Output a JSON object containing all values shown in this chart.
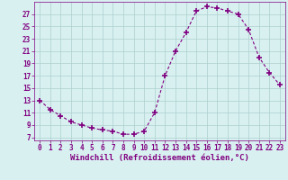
{
  "x": [
    0,
    1,
    2,
    3,
    4,
    5,
    6,
    7,
    8,
    9,
    10,
    11,
    12,
    13,
    14,
    15,
    16,
    17,
    18,
    19,
    20,
    21,
    22,
    23
  ],
  "y": [
    13,
    11.5,
    10.5,
    9.5,
    9,
    8.5,
    8.2,
    8,
    7.5,
    7.5,
    8,
    11,
    17,
    21,
    24,
    27.5,
    28.2,
    28,
    27.5,
    27,
    24.5,
    20,
    17.5,
    15.5
  ],
  "line_color": "#800080",
  "marker": "+",
  "marker_size": 4,
  "marker_lw": 1.2,
  "bg_color": "#d8f0f0",
  "grid_color": "#aecece",
  "xlabel": "Windchill (Refroidissement éolien,°C)",
  "xlabel_fontsize": 6.5,
  "yticks": [
    7,
    9,
    11,
    13,
    15,
    17,
    19,
    21,
    23,
    25,
    27
  ],
  "xtick_labels": [
    "0",
    "1",
    "2",
    "3",
    "4",
    "5",
    "6",
    "7",
    "8",
    "9",
    "10",
    "11",
    "12",
    "13",
    "14",
    "15",
    "16",
    "17",
    "18",
    "19",
    "20",
    "21",
    "22",
    "23"
  ],
  "xticks": [
    0,
    1,
    2,
    3,
    4,
    5,
    6,
    7,
    8,
    9,
    10,
    11,
    12,
    13,
    14,
    15,
    16,
    17,
    18,
    19,
    20,
    21,
    22,
    23
  ],
  "ylim": [
    6.5,
    29
  ],
  "xlim": [
    -0.5,
    23.5
  ],
  "tick_color": "#800080",
  "tick_fontsize": 5.5,
  "xlabel_color": "#800080"
}
